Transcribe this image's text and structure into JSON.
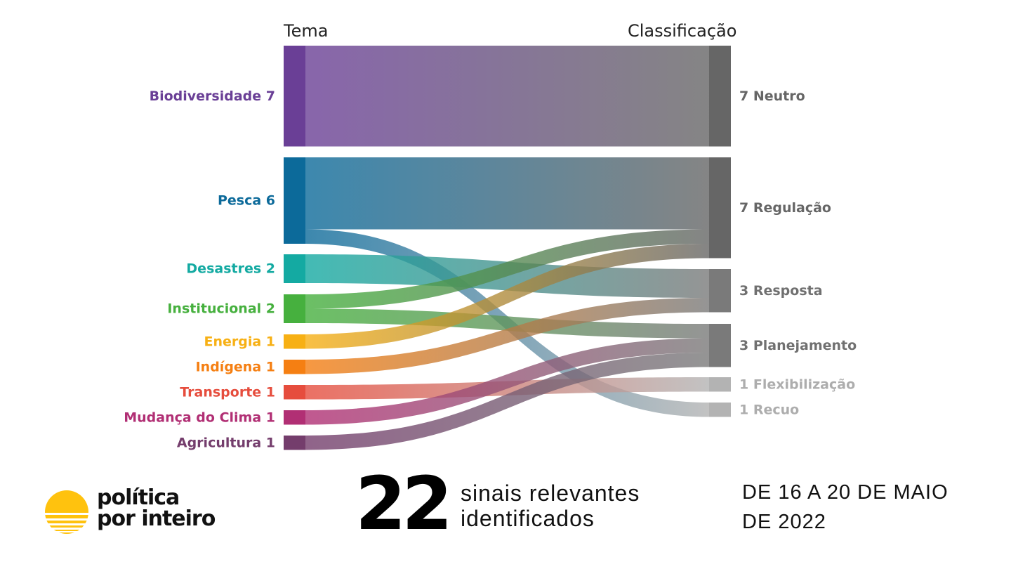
{
  "chart_data": {
    "type": "sankey",
    "column_headers": {
      "left": "Tema",
      "right": "Classificação"
    },
    "source_nodes": [
      {
        "name": "Biodiversidade",
        "label": "Biodiversidade 7",
        "value": 7,
        "color": "#6a3f96"
      },
      {
        "name": "Pesca",
        "label": "Pesca 6",
        "value": 6,
        "color": "#0c6a9a"
      },
      {
        "name": "Desastres",
        "label": "Desastres 2",
        "value": 2,
        "color": "#14aaa2"
      },
      {
        "name": "Institucional",
        "label": "Institucional 2",
        "value": 2,
        "color": "#46b03e"
      },
      {
        "name": "Energia",
        "label": "Energia 1",
        "value": 1,
        "color": "#f7b014"
      },
      {
        "name": "Indígena",
        "label": "Indígena 1",
        "value": 1,
        "color": "#f57f12"
      },
      {
        "name": "Transporte",
        "label": "Transporte 1",
        "value": 1,
        "color": "#e64d3d"
      },
      {
        "name": "Mudança do Clima",
        "label": "Mudança do Clima 1",
        "value": 1,
        "color": "#b12f74"
      },
      {
        "name": "Agricultura",
        "label": "Agricultura 1",
        "value": 1,
        "color": "#743d6c"
      }
    ],
    "target_nodes": [
      {
        "name": "Neutro",
        "label": "7 Neutro",
        "value": 7,
        "color": "#666666",
        "label_color": "#666666"
      },
      {
        "name": "Regulação",
        "label": "7 Regulação",
        "value": 7,
        "color": "#666666",
        "label_color": "#666666"
      },
      {
        "name": "Resposta",
        "label": "3 Resposta",
        "value": 3,
        "color": "#7a7a7a",
        "label_color": "#707070"
      },
      {
        "name": "Planejamento",
        "label": "3 Planejamento",
        "value": 3,
        "color": "#7a7a7a",
        "label_color": "#707070"
      },
      {
        "name": "Flexibilização",
        "label": "1 Flexibilização",
        "value": 1,
        "color": "#b3b3b3",
        "label_color": "#adadad"
      },
      {
        "name": "Recuo",
        "label": "1 Recuo",
        "value": 1,
        "color": "#b3b3b3",
        "label_color": "#adadad"
      }
    ],
    "links": [
      {
        "source": "Biodiversidade",
        "target": "Neutro",
        "value": 7
      },
      {
        "source": "Pesca",
        "target": "Regulação",
        "value": 5
      },
      {
        "source": "Pesca",
        "target": "Recuo",
        "value": 1
      },
      {
        "source": "Desastres",
        "target": "Resposta",
        "value": 2
      },
      {
        "source": "Institucional",
        "target": "Regulação",
        "value": 1
      },
      {
        "source": "Institucional",
        "target": "Planejamento",
        "value": 1
      },
      {
        "source": "Energia",
        "target": "Regulação",
        "value": 1
      },
      {
        "source": "Indígena",
        "target": "Resposta",
        "value": 1
      },
      {
        "source": "Transporte",
        "target": "Flexibilização",
        "value": 1
      },
      {
        "source": "Mudança do Clima",
        "target": "Planejamento",
        "value": 1
      },
      {
        "source": "Agricultura",
        "target": "Planejamento",
        "value": 1
      }
    ]
  },
  "footer": {
    "logo_line1": "política",
    "logo_line2": "por inteiro",
    "big_number": "22",
    "subtitle_line1": "sinais relevantes",
    "subtitle_line2": "identificados",
    "date_line1": "DE 16 A 20 DE MAIO",
    "date_line2": "DE 2022",
    "logo_color": "#ffc20e"
  }
}
